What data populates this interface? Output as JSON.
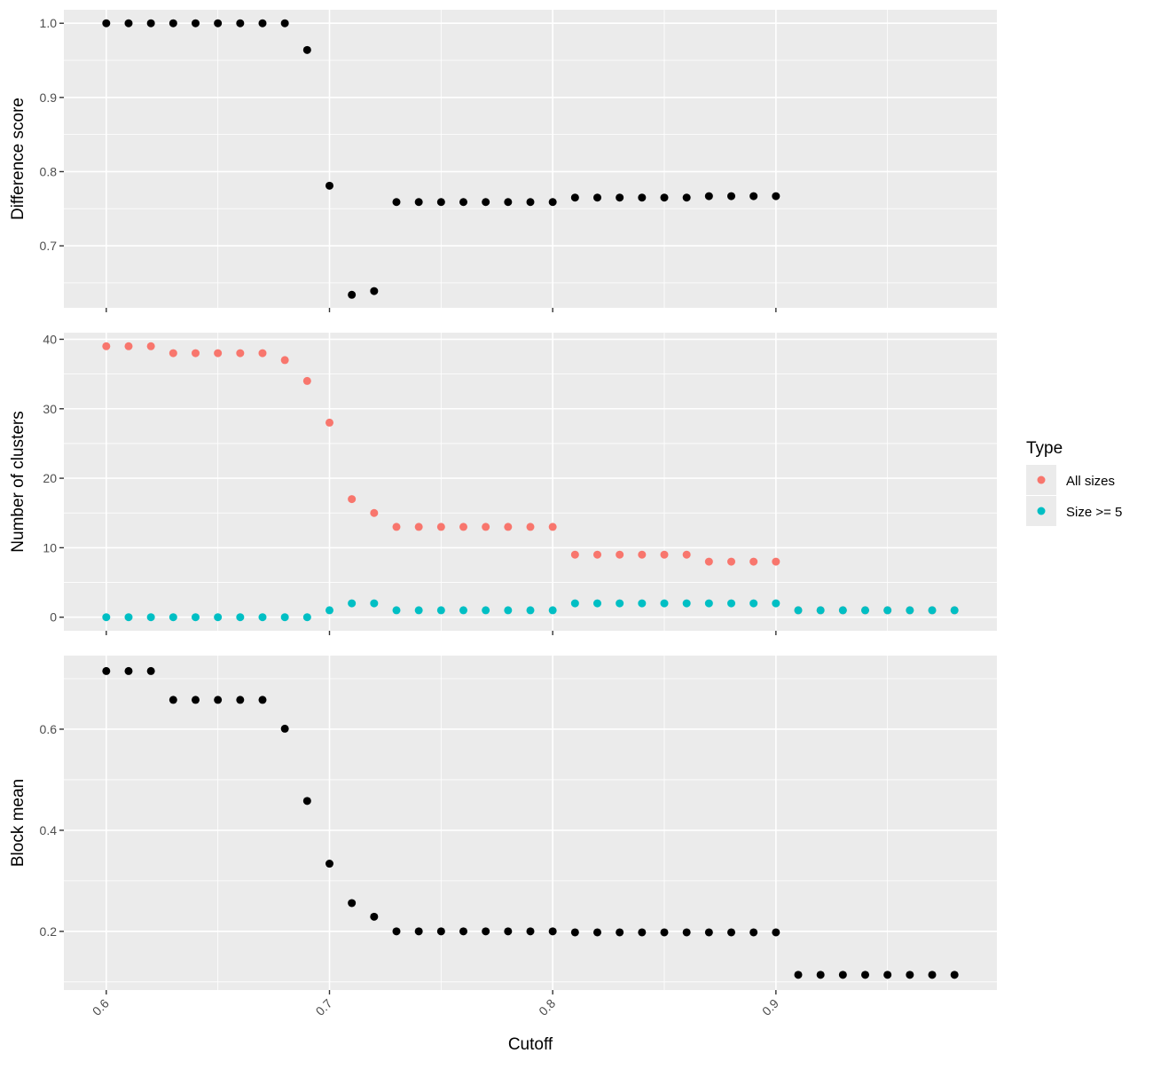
{
  "chart_data": {
    "type": "scatter",
    "xlabel": "Cutoff",
    "xlim": [
      0.581,
      0.999
    ],
    "x_ticks": [
      "0.6",
      "0.7",
      "0.8",
      "0.9"
    ],
    "x_tick_values": [
      0.6,
      0.7,
      0.8,
      0.9
    ],
    "grid": true,
    "legend": {
      "title": "Type",
      "position": "right",
      "entries": [
        {
          "label": "All sizes",
          "color": "#F8766D"
        },
        {
          "label": "Size >= 5",
          "color": "#00BFC4"
        }
      ]
    },
    "panels": [
      {
        "ylabel": "Difference score",
        "ylim": [
          0.6164,
          1.0182
        ],
        "y_ticks": [
          "0.7",
          "0.8",
          "0.9",
          "1.0"
        ],
        "y_tick_values": [
          0.7,
          0.8,
          0.9,
          1.0
        ],
        "series": [
          {
            "color": "#000000",
            "x": [
              0.6,
              0.61,
              0.62,
              0.63,
              0.64,
              0.65,
              0.66,
              0.67,
              0.68,
              0.69,
              0.7,
              0.71,
              0.72,
              0.73,
              0.74,
              0.75,
              0.76,
              0.77,
              0.78,
              0.79,
              0.8,
              0.81,
              0.82,
              0.83,
              0.84,
              0.85,
              0.86,
              0.87,
              0.88,
              0.89,
              0.9
            ],
            "y": [
              1.0,
              1.0,
              1.0,
              1.0,
              1.0,
              1.0,
              1.0,
              1.0,
              1.0,
              0.964,
              0.781,
              0.634,
              0.639,
              0.759,
              0.759,
              0.759,
              0.759,
              0.759,
              0.759,
              0.759,
              0.759,
              0.765,
              0.765,
              0.765,
              0.765,
              0.765,
              0.765,
              0.767,
              0.767,
              0.767,
              0.767
            ]
          }
        ]
      },
      {
        "ylabel": "Number of clusters",
        "ylim": [
          -1.95,
          40.95
        ],
        "y_ticks": [
          "0",
          "10",
          "20",
          "30",
          "40"
        ],
        "y_tick_values": [
          0,
          10,
          20,
          30,
          40
        ],
        "series": [
          {
            "name": "All sizes",
            "color": "#F8766D",
            "x": [
              0.6,
              0.61,
              0.62,
              0.63,
              0.64,
              0.65,
              0.66,
              0.67,
              0.68,
              0.69,
              0.7,
              0.71,
              0.72,
              0.73,
              0.74,
              0.75,
              0.76,
              0.77,
              0.78,
              0.79,
              0.8,
              0.81,
              0.82,
              0.83,
              0.84,
              0.85,
              0.86,
              0.87,
              0.88,
              0.89,
              0.9,
              0.91,
              0.92,
              0.93,
              0.94,
              0.95,
              0.96,
              0.97,
              0.98
            ],
            "y": [
              39,
              39,
              39,
              38,
              38,
              38,
              38,
              38,
              37,
              34,
              28,
              17,
              15,
              13,
              13,
              13,
              13,
              13,
              13,
              13,
              13,
              9,
              9,
              9,
              9,
              9,
              9,
              8,
              8,
              8,
              8,
              1,
              1,
              1,
              1,
              1,
              1,
              1,
              1
            ]
          },
          {
            "name": "Size >= 5",
            "color": "#00BFC4",
            "x": [
              0.6,
              0.61,
              0.62,
              0.63,
              0.64,
              0.65,
              0.66,
              0.67,
              0.68,
              0.69,
              0.7,
              0.71,
              0.72,
              0.73,
              0.74,
              0.75,
              0.76,
              0.77,
              0.78,
              0.79,
              0.8,
              0.81,
              0.82,
              0.83,
              0.84,
              0.85,
              0.86,
              0.87,
              0.88,
              0.89,
              0.9,
              0.91,
              0.92,
              0.93,
              0.94,
              0.95,
              0.96,
              0.97,
              0.98
            ],
            "y": [
              0,
              0,
              0,
              0,
              0,
              0,
              0,
              0,
              0,
              0,
              1,
              2,
              2,
              1,
              1,
              1,
              1,
              1,
              1,
              1,
              1,
              2,
              2,
              2,
              2,
              2,
              2,
              2,
              2,
              2,
              2,
              1,
              1,
              1,
              1,
              1,
              1,
              1,
              1
            ]
          }
        ]
      },
      {
        "ylabel": "Block mean",
        "ylim": [
          0.0839,
          0.7456
        ],
        "y_ticks": [
          "0.2",
          "0.4",
          "0.6"
        ],
        "y_tick_values": [
          0.2,
          0.4,
          0.6
        ],
        "series": [
          {
            "color": "#000000",
            "x": [
              0.6,
              0.61,
              0.62,
              0.63,
              0.64,
              0.65,
              0.66,
              0.67,
              0.68,
              0.69,
              0.7,
              0.71,
              0.72,
              0.73,
              0.74,
              0.75,
              0.76,
              0.77,
              0.78,
              0.79,
              0.8,
              0.81,
              0.82,
              0.83,
              0.84,
              0.85,
              0.86,
              0.87,
              0.88,
              0.89,
              0.9,
              0.91,
              0.92,
              0.93,
              0.94,
              0.95,
              0.96,
              0.97,
              0.98
            ],
            "y": [
              0.715,
              0.715,
              0.715,
              0.658,
              0.658,
              0.658,
              0.658,
              0.658,
              0.601,
              0.458,
              0.334,
              0.256,
              0.229,
              0.2,
              0.2,
              0.2,
              0.2,
              0.2,
              0.2,
              0.2,
              0.2,
              0.198,
              0.198,
              0.198,
              0.198,
              0.198,
              0.198,
              0.198,
              0.198,
              0.198,
              0.198,
              0.114,
              0.114,
              0.114,
              0.114,
              0.114,
              0.114,
              0.114,
              0.114
            ]
          }
        ]
      }
    ]
  }
}
